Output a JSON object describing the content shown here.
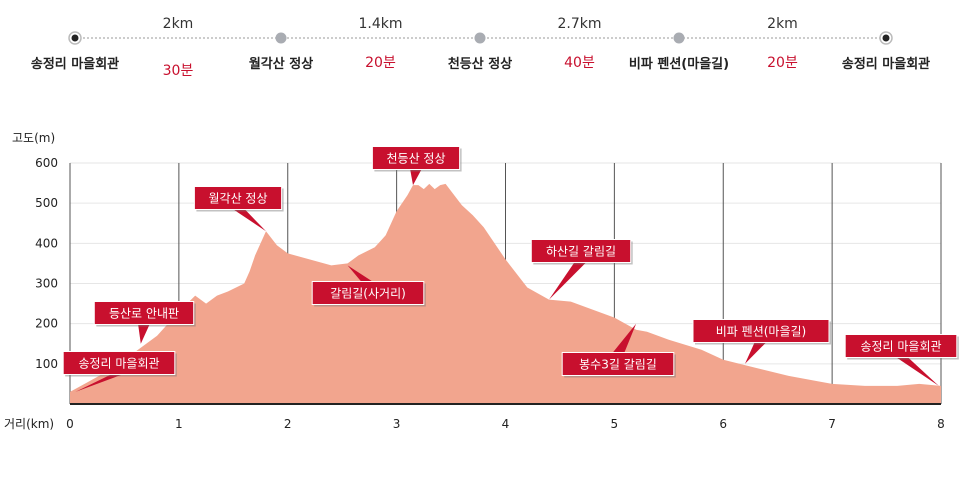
{
  "route": {
    "stops": [
      "송정리 마을회관",
      "월각산 정상",
      "천등산 정상",
      "비파 펜션(마을길)",
      "송정리 마을회관"
    ],
    "segments": [
      {
        "distance": "2km",
        "time": "30분"
      },
      {
        "distance": "1.4km",
        "time": "20분"
      },
      {
        "distance": "2.7km",
        "time": "40분"
      },
      {
        "distance": "2km",
        "time": "20분"
      }
    ]
  },
  "chart_data": {
    "type": "area",
    "xlabel": "거리(km)",
    "ylabel": "고도(m)",
    "xlim": [
      0,
      8
    ],
    "ylim": [
      0,
      600
    ],
    "xticks": [
      "0",
      "1",
      "2",
      "3",
      "4",
      "5",
      "6",
      "7",
      "8"
    ],
    "yticks": [
      "100",
      "200",
      "300",
      "400",
      "500",
      "600"
    ],
    "grid": "vertical",
    "fill_color": "#f2a58e",
    "x": [
      0,
      0.2,
      0.4,
      0.6,
      0.8,
      1.0,
      1.15,
      1.25,
      1.35,
      1.45,
      1.6,
      1.65,
      1.7,
      1.8,
      1.9,
      2.0,
      2.2,
      2.4,
      2.55,
      2.65,
      2.8,
      2.9,
      3.0,
      3.1,
      3.15,
      3.2,
      3.25,
      3.3,
      3.35,
      3.4,
      3.45,
      3.5,
      3.6,
      3.7,
      3.8,
      4.0,
      4.2,
      4.4,
      4.6,
      4.8,
      5.0,
      5.2,
      5.3,
      5.5,
      5.8,
      6.0,
      6.3,
      6.6,
      7.0,
      7.3,
      7.6,
      7.8,
      8.0
    ],
    "y": [
      30,
      60,
      90,
      130,
      170,
      230,
      270,
      250,
      270,
      280,
      300,
      330,
      370,
      430,
      395,
      375,
      360,
      345,
      350,
      370,
      390,
      420,
      480,
      520,
      545,
      545,
      535,
      548,
      535,
      545,
      548,
      530,
      495,
      470,
      440,
      360,
      290,
      260,
      255,
      235,
      215,
      185,
      180,
      160,
      135,
      110,
      90,
      70,
      50,
      45,
      45,
      50,
      45
    ],
    "annotations": [
      {
        "text": "송정리 마을회관",
        "x": 0.05,
        "y": 30
      },
      {
        "text": "등산로 안내판",
        "x": 0.65,
        "y": 150
      },
      {
        "text": "월각산 정상",
        "x": 1.8,
        "y": 430
      },
      {
        "text": "갈림길(사거리)",
        "x": 2.55,
        "y": 345
      },
      {
        "text": "천등산 정상",
        "x": 3.15,
        "y": 545
      },
      {
        "text": "하산길 갈림길",
        "x": 4.4,
        "y": 260
      },
      {
        "text": "봉수3길 갈림길",
        "x": 5.2,
        "y": 200
      },
      {
        "text": "비파 펜션(마을길)",
        "x": 6.2,
        "y": 100
      },
      {
        "text": "송정리 마을회관",
        "x": 7.98,
        "y": 45
      }
    ]
  }
}
